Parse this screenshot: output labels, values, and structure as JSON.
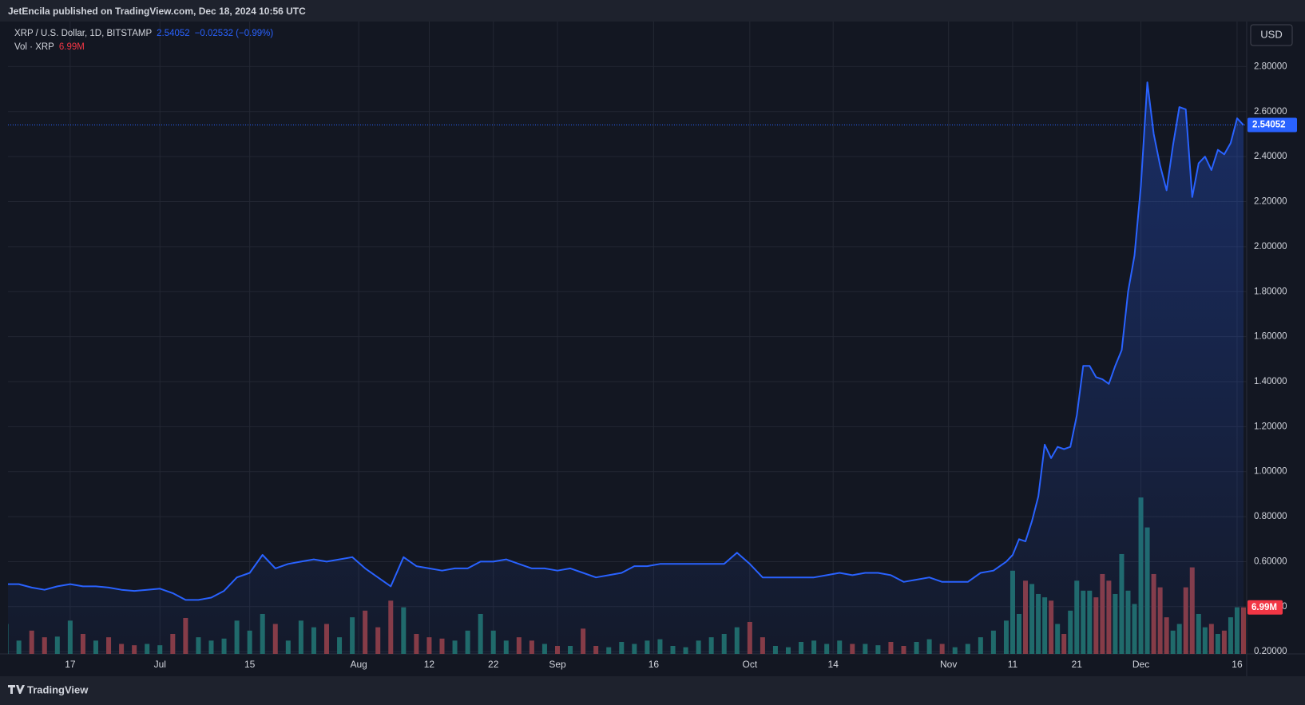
{
  "header": {
    "publisher": "JetEncila published on TradingView.com, Dec 18, 2024 10:56 UTC",
    "brand": "TradingView"
  },
  "chart_data": {
    "type": "line",
    "currency": "USD",
    "change": "−0.02532 (−0.99%)",
    "last_price": {
      "value": 2.54052,
      "label": "2.54052"
    },
    "x": [
      0,
      2,
      4,
      6,
      8,
      10,
      12,
      14,
      16,
      18,
      20,
      22,
      24,
      26,
      28,
      30,
      32,
      34,
      36,
      38,
      40,
      42,
      44,
      46,
      48,
      50,
      52,
      54,
      56,
      58,
      60,
      62,
      64,
      66,
      68,
      70,
      72,
      74,
      76,
      78,
      80,
      82,
      84,
      86,
      88,
      90,
      92,
      94,
      96,
      98,
      100,
      102,
      104,
      106,
      108,
      110,
      112,
      114,
      116,
      118,
      120,
      122,
      124,
      126,
      128,
      130,
      132,
      134,
      136,
      138,
      140,
      142,
      144,
      146,
      148,
      150,
      152,
      154,
      156,
      157,
      158,
      159,
      160,
      161,
      162,
      163,
      164,
      165,
      166,
      167,
      168,
      169,
      170,
      171,
      172,
      173,
      174,
      175,
      176,
      177,
      178,
      179,
      180,
      181,
      182,
      183,
      184,
      185,
      186,
      187,
      188,
      189,
      190,
      191,
      192,
      193
    ],
    "xlim": [
      0.3,
      193.5
    ],
    "xticks": [
      {
        "value": 10,
        "label": "17"
      },
      {
        "value": 24,
        "label": "Jul"
      },
      {
        "value": 38,
        "label": "15"
      },
      {
        "value": 55,
        "label": "Aug"
      },
      {
        "value": 66,
        "label": "12"
      },
      {
        "value": 76,
        "label": "22"
      },
      {
        "value": 86,
        "label": "Sep"
      },
      {
        "value": 101,
        "label": "16"
      },
      {
        "value": 116,
        "label": "Oct"
      },
      {
        "value": 129,
        "label": "14"
      },
      {
        "value": 147,
        "label": "Nov"
      },
      {
        "value": 157,
        "label": "11"
      },
      {
        "value": 167,
        "label": "21"
      },
      {
        "value": 177,
        "label": "Dec"
      },
      {
        "value": 192,
        "label": "16"
      }
    ],
    "ylim": [
      0.19,
      3.0
    ],
    "yticks": [
      {
        "value": 0.2,
        "label": "0.20000"
      },
      {
        "value": 0.4,
        "label": "0.40000"
      },
      {
        "value": 0.6,
        "label": "0.60000"
      },
      {
        "value": 0.8,
        "label": "0.80000"
      },
      {
        "value": 1.0,
        "label": "1.00000"
      },
      {
        "value": 1.2,
        "label": "1.20000"
      },
      {
        "value": 1.4,
        "label": "1.40000"
      },
      {
        "value": 1.6,
        "label": "1.60000"
      },
      {
        "value": 1.8,
        "label": "1.80000"
      },
      {
        "value": 2.0,
        "label": "2.00000"
      },
      {
        "value": 2.2,
        "label": "2.20000"
      },
      {
        "value": 2.4,
        "label": "2.40000"
      },
      {
        "value": 2.6,
        "label": "2.60000"
      },
      {
        "value": 2.8,
        "label": "2.80000"
      }
    ],
    "y2lim": [
      0,
      95
    ],
    "grid": true,
    "series": [
      {
        "name": "XRP / U.S. Dollar, 1D, BITSTAMP",
        "color": "#2962ff",
        "values": [
          0.5,
          0.5,
          0.485,
          0.475,
          0.49,
          0.5,
          0.49,
          0.49,
          0.485,
          0.475,
          0.47,
          0.475,
          0.48,
          0.46,
          0.43,
          0.43,
          0.44,
          0.47,
          0.53,
          0.55,
          0.63,
          0.57,
          0.59,
          0.6,
          0.61,
          0.6,
          0.61,
          0.62,
          0.57,
          0.53,
          0.49,
          0.62,
          0.58,
          0.57,
          0.56,
          0.57,
          0.57,
          0.6,
          0.6,
          0.61,
          0.59,
          0.57,
          0.57,
          0.56,
          0.57,
          0.55,
          0.53,
          0.54,
          0.55,
          0.58,
          0.58,
          0.59,
          0.59,
          0.59,
          0.59,
          0.59,
          0.59,
          0.64,
          0.59,
          0.53,
          0.53,
          0.53,
          0.53,
          0.53,
          0.54,
          0.55,
          0.54,
          0.55,
          0.55,
          0.54,
          0.51,
          0.52,
          0.53,
          0.51,
          0.51,
          0.51,
          0.55,
          0.56,
          0.6,
          0.63,
          0.7,
          0.69,
          0.78,
          0.89,
          1.12,
          1.06,
          1.11,
          1.1,
          1.11,
          1.25,
          1.47,
          1.47,
          1.42,
          1.41,
          1.39,
          1.47,
          1.54,
          1.8,
          1.96,
          2.27,
          2.73,
          2.5,
          2.36,
          2.25,
          2.45,
          2.62,
          2.61,
          2.22,
          2.37,
          2.4,
          2.34,
          2.43,
          2.41,
          2.46,
          2.57,
          2.54
        ]
      },
      {
        "name": "Vol · XRP",
        "axis": "y2",
        "up_color": "#1f6b64",
        "down_color": "#8a3a3f",
        "last_label": {
          "value": 6.99,
          "label": "6.99M"
        },
        "values": [
          4.5,
          2.0,
          3.5,
          2.5,
          2.6,
          5.0,
          3.0,
          2.0,
          2.5,
          1.5,
          1.3,
          1.5,
          1.3,
          3.0,
          5.4,
          2.5,
          2.0,
          2.3,
          5.0,
          3.5,
          6.0,
          4.5,
          2.0,
          5.0,
          4.0,
          4.5,
          2.5,
          5.5,
          6.5,
          4.0,
          8.0,
          7.0,
          3.0,
          2.5,
          2.3,
          2.0,
          3.5,
          6.0,
          3.5,
          2.0,
          2.5,
          2.0,
          1.5,
          1.2,
          1.2,
          3.8,
          1.2,
          1.0,
          1.8,
          1.5,
          2.0,
          2.2,
          1.2,
          1.0,
          2.0,
          2.5,
          3.0,
          4.0,
          4.8,
          2.5,
          1.2,
          1.0,
          1.8,
          2.0,
          1.5,
          2.0,
          1.5,
          1.5,
          1.3,
          1.8,
          1.2,
          1.8,
          2.2,
          1.5,
          1.0,
          1.5,
          2.5,
          3.5,
          5.0,
          12.5,
          6.0,
          11.0,
          10.5,
          9.0,
          8.5,
          8.0,
          4.5,
          3.0,
          6.5,
          11.0,
          9.5,
          9.5,
          8.5,
          12.0,
          11.0,
          9.0,
          15.0,
          9.5,
          7.5,
          23.5,
          19.0,
          12.0,
          10.0,
          5.5,
          3.5,
          4.5,
          10.0,
          13.0,
          6.0,
          4.0,
          4.5,
          3.0,
          3.5,
          5.5,
          7.0,
          6.99
        ]
      }
    ]
  }
}
